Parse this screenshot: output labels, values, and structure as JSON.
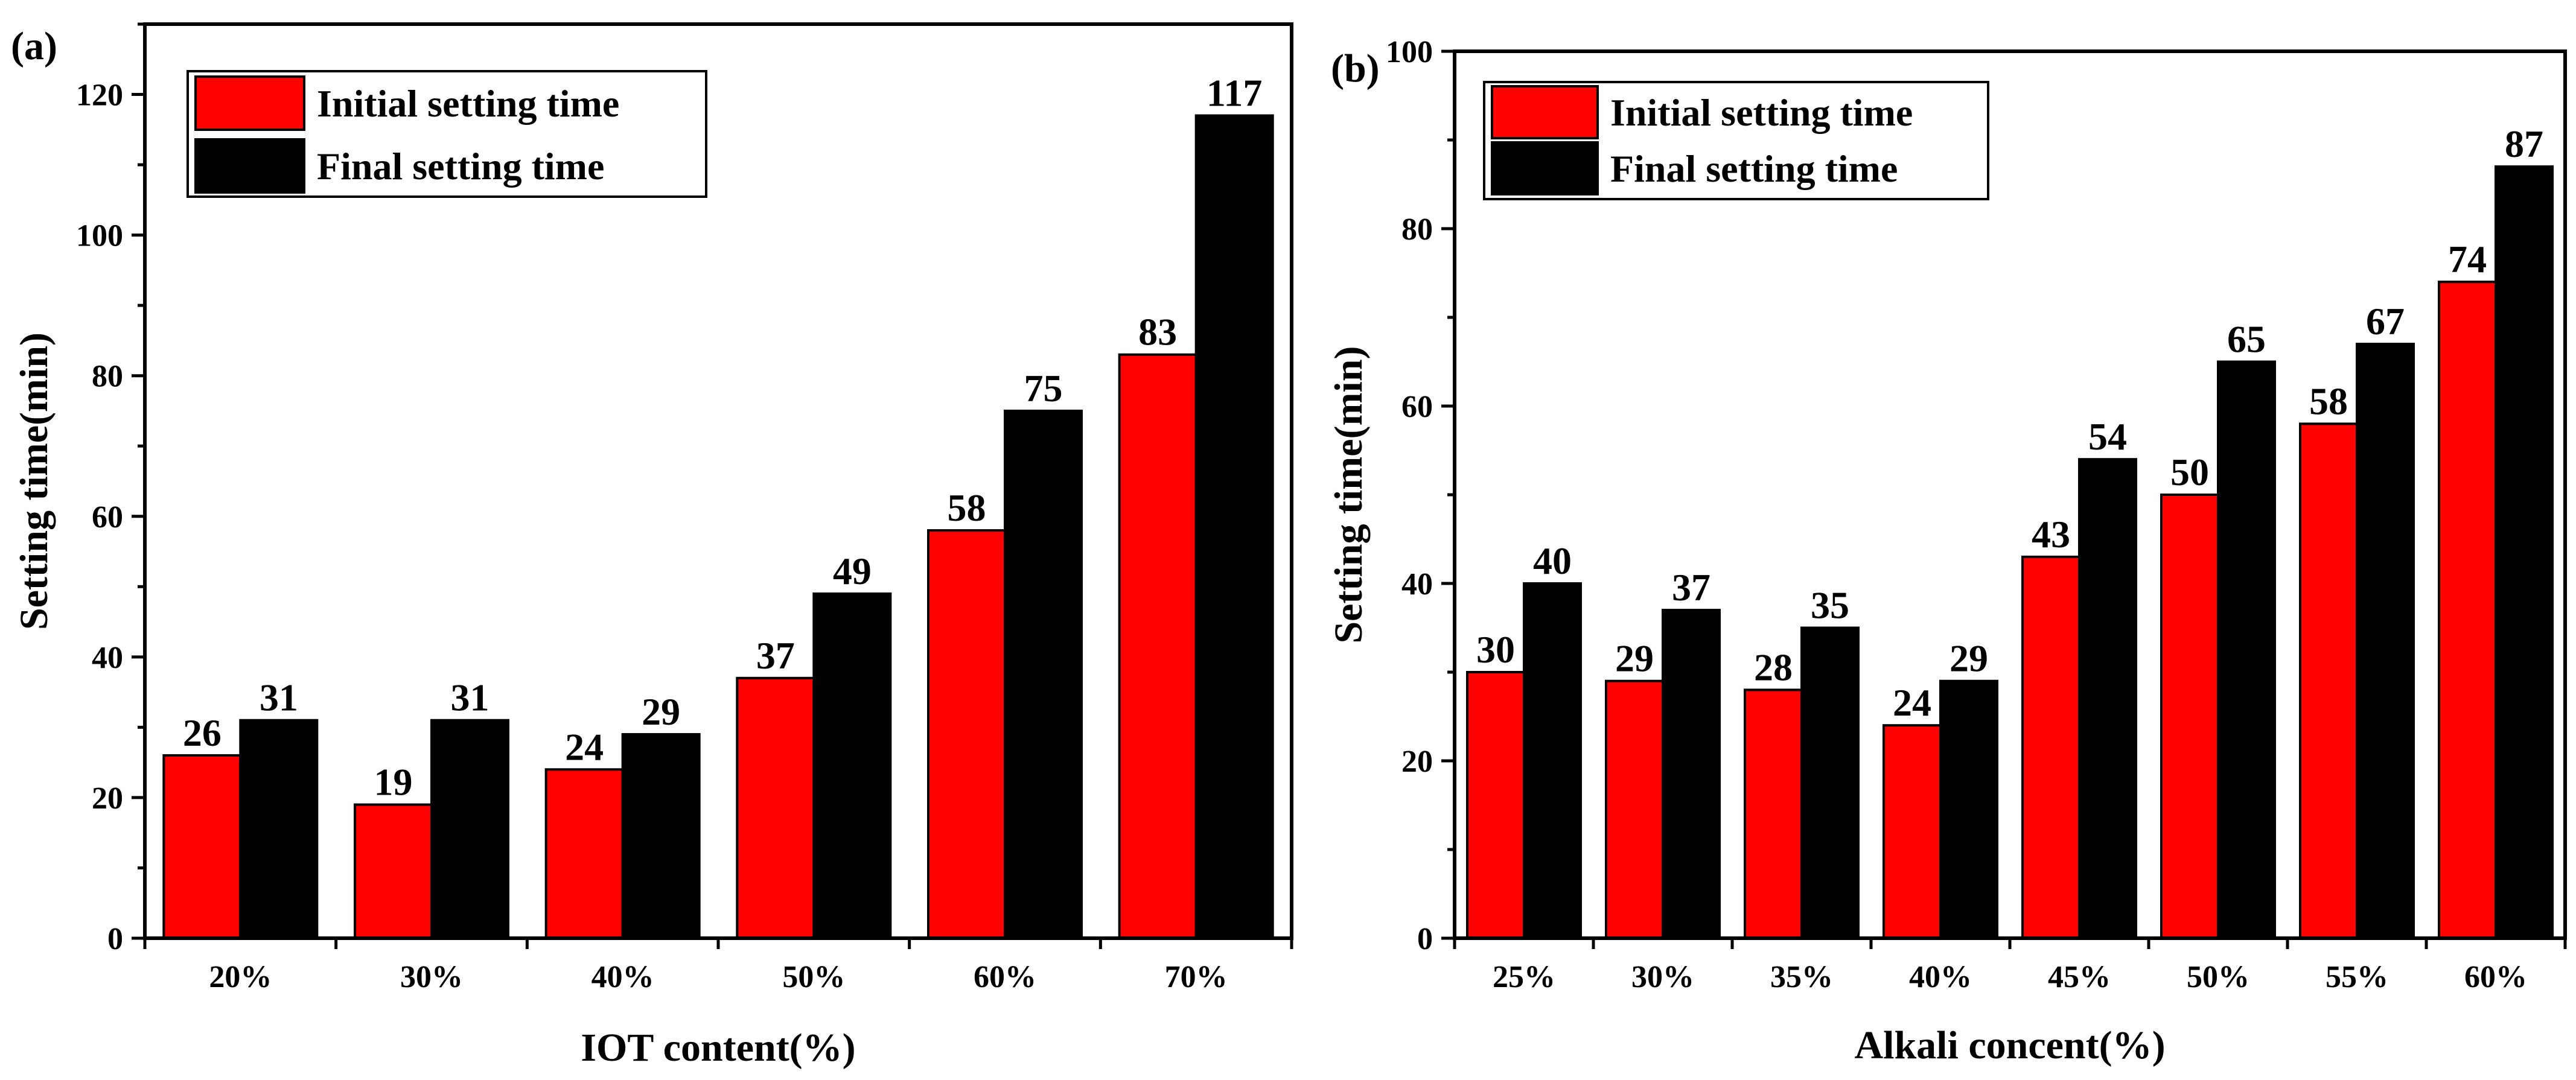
{
  "chart_data": [
    {
      "panel_label": "(a)",
      "type": "bar",
      "xlabel": "IOT content(%)",
      "ylabel": "Setting time(min)",
      "ylim": [
        0,
        130
      ],
      "yticks": [
        0,
        20,
        40,
        60,
        80,
        100,
        120
      ],
      "categories": [
        "20%",
        "30%",
        "40%",
        "50%",
        "60%",
        "70%"
      ],
      "series": [
        {
          "name": "Initial setting time",
          "color": "#ff0000",
          "values": [
            26,
            19,
            24,
            37,
            58,
            83
          ]
        },
        {
          "name": "Final setting time",
          "color": "#000000",
          "values": [
            31,
            31,
            29,
            49,
            75,
            117
          ]
        }
      ],
      "legend": "top-left"
    },
    {
      "panel_label": "(b)",
      "type": "bar",
      "xlabel": "Alkali concent(%)",
      "ylabel": "Setting time(min)",
      "ylim": [
        0,
        100
      ],
      "yticks": [
        0,
        20,
        40,
        60,
        80,
        100
      ],
      "categories": [
        "25%",
        "30%",
        "35%",
        "40%",
        "45%",
        "50%",
        "55%",
        "60%"
      ],
      "series": [
        {
          "name": "Initial setting time",
          "color": "#ff0000",
          "values": [
            30,
            29,
            28,
            24,
            43,
            50,
            58,
            74
          ]
        },
        {
          "name": "Final setting time",
          "color": "#000000",
          "values": [
            40,
            37,
            35,
            29,
            54,
            65,
            67,
            87
          ]
        }
      ],
      "legend": "top-left"
    }
  ]
}
